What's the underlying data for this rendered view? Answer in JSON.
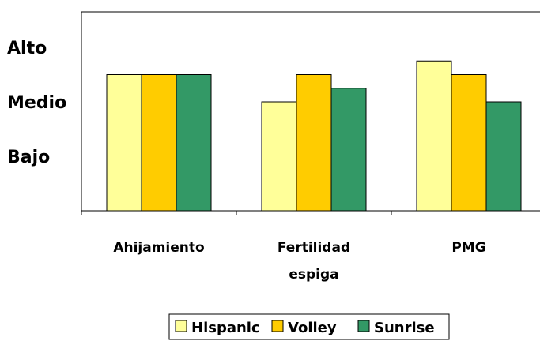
{
  "chart_data": {
    "type": "bar",
    "title": "",
    "xlabel": "",
    "ylabel": "",
    "categories": [
      [
        "Ahijamiento"
      ],
      [
        "Fertilidad",
        "espiga"
      ],
      [
        "PMG"
      ]
    ],
    "y_ticks": [
      {
        "label": "Bajo",
        "value": 1
      },
      {
        "label": "Medio",
        "value": 2
      },
      {
        "label": "Alto",
        "value": 3
      }
    ],
    "ylim": [
      0,
      3.5
    ],
    "grid": false,
    "legend_position": "bottom",
    "series": [
      {
        "name": "Hispanic",
        "color": "#FFFF99",
        "values": [
          2.5,
          2.0,
          2.75
        ]
      },
      {
        "name": "Volley",
        "color": "#FFCC00",
        "values": [
          2.5,
          2.5,
          2.5
        ]
      },
      {
        "name": "Sunrise",
        "color": "#339966",
        "values": [
          2.5,
          2.25,
          2.0
        ]
      }
    ]
  }
}
